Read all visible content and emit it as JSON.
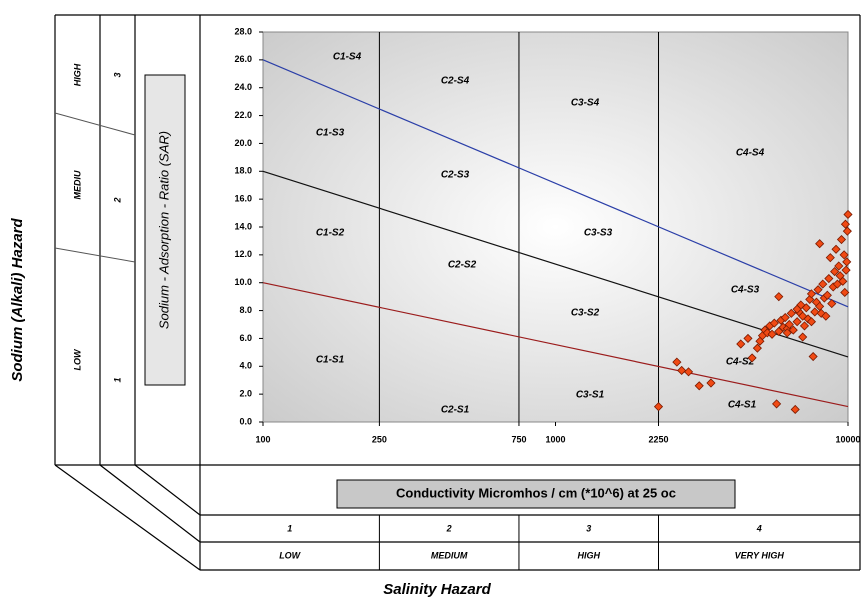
{
  "chart_data": {
    "type": "scatter",
    "xlabel": "Conductivity Micromhos / cm (*10^6) at 25 oc",
    "ylabel": "Sodium - Adsorption - Ratio (SAR)",
    "x_log": true,
    "xlim": [
      100,
      10000
    ],
    "xticks": [
      100,
      250,
      750,
      1000,
      2250,
      10000
    ],
    "ylim": [
      0,
      28
    ],
    "yticks": [
      {
        "value": 0,
        "label": "0.0"
      },
      {
        "value": 2,
        "label": "2.0"
      },
      {
        "value": 4,
        "label": "4.0"
      },
      {
        "value": 6,
        "label": "6.0"
      },
      {
        "value": 8,
        "label": "8.0"
      },
      {
        "value": 10,
        "label": "10.0"
      },
      {
        "value": 12,
        "label": "12.0"
      },
      {
        "value": 14,
        "label": "14.0"
      },
      {
        "value": 16,
        "label": "16.0"
      },
      {
        "value": 18,
        "label": "18.0"
      },
      {
        "value": 20,
        "label": "20.0"
      },
      {
        "value": 22,
        "label": "22.0"
      },
      {
        "value": 24,
        "label": "24.0"
      },
      {
        "value": 26,
        "label": "26.0"
      },
      {
        "value": 28,
        "label": "28.0"
      }
    ],
    "class_boundaries": [
      250,
      750,
      2250
    ],
    "lines": [
      {
        "color": "#2b3fa8",
        "x": [
          100,
          10000
        ],
        "values": [
          26,
          8.27
        ]
      },
      {
        "color": "#111111",
        "x": [
          100,
          10000
        ],
        "values": [
          18,
          4.67
        ]
      },
      {
        "color": "#9b1c1c",
        "x": [
          100,
          10000
        ],
        "values": [
          10,
          1.11
        ]
      }
    ],
    "zones": [
      "C1-S4",
      "C2-S4",
      "C3-S4",
      "C4-S4",
      "C1-S3",
      "C2-S3",
      "C3-S3",
      "C4-S3",
      "C1-S2",
      "C2-S2",
      "C3-S2",
      "C4-S2",
      "C1-S1",
      "C2-S1",
      "C3-S1",
      "C4-S1"
    ],
    "series": [
      {
        "color": "#f04a14",
        "x": [
          2250,
          2600,
          2700,
          2850,
          3100,
          3400,
          4300,
          4550,
          4700,
          4900,
          5000,
          5100,
          5200,
          5300,
          5400,
          5500,
          5600,
          5700,
          5800,
          5900,
          6000,
          6100,
          6200,
          6300,
          6400,
          6500,
          6600,
          6700,
          6800,
          6900,
          7000,
          7100,
          7200,
          7300,
          7400,
          7500,
          7600,
          7700,
          7800,
          7900,
          8000,
          8100,
          8200,
          8300,
          8400,
          8500,
          8600,
          8700,
          8800,
          8900,
          9000,
          9100,
          9200,
          9300,
          9400,
          9500,
          9600,
          9700,
          9800,
          9900,
          10000,
          9950,
          9850,
          9750,
          5800,
          6700,
          6200,
          7000,
          7500,
          8000
        ],
        "values": [
          1.1,
          4.3,
          3.7,
          3.6,
          2.6,
          2.8,
          5.6,
          6.0,
          4.6,
          5.3,
          5.8,
          6.2,
          6.6,
          6.4,
          6.9,
          6.3,
          7.1,
          1.3,
          6.5,
          7.3,
          6.8,
          7.5,
          6.7,
          7.0,
          7.8,
          6.6,
          0.9,
          7.2,
          7.9,
          8.4,
          7.6,
          6.9,
          8.2,
          7.4,
          8.8,
          9.2,
          4.7,
          7.9,
          8.6,
          9.5,
          8.3,
          7.8,
          9.9,
          8.9,
          7.6,
          9.1,
          10.3,
          11.8,
          8.5,
          9.7,
          10.8,
          12.4,
          9.9,
          11.2,
          10.5,
          13.1,
          10.1,
          12.0,
          14.2,
          11.5,
          14.9,
          13.7,
          10.9,
          9.3,
          9.0,
          8.1,
          6.4,
          6.1,
          7.2,
          12.8
        ]
      }
    ],
    "y_hazard": {
      "title": "Sodium (Alkali) Hazard",
      "levels": [
        "LOW",
        "MEDIU",
        "HIGH"
      ],
      "numbers": [
        "1",
        "2",
        "3"
      ]
    },
    "x_hazard": {
      "title": "Salinity Hazard",
      "numbers": [
        "1",
        "2",
        "3",
        "4"
      ],
      "levels": [
        "LOW",
        "MEDIUM",
        "HIGH",
        "VERY HIGH"
      ]
    }
  }
}
